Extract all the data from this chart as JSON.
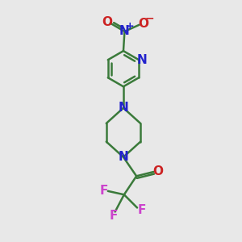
{
  "bg_color": "#e8e8e8",
  "bond_color": "#3a7a3a",
  "n_color": "#2222cc",
  "o_color": "#cc2222",
  "f_color": "#cc44cc",
  "line_width": 1.8,
  "font_size": 11,
  "small_font": 9,
  "fig_size": [
    3.0,
    3.0
  ],
  "dpi": 100,
  "xlim": [
    0,
    10
  ],
  "ylim": [
    0,
    10
  ]
}
